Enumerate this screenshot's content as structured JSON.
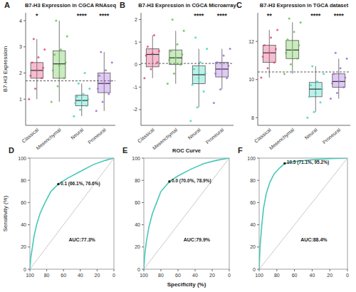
{
  "chart_data": [
    {
      "type": "box",
      "panel": "A",
      "title": "B7-H3 Expression in CGCA RNAseq",
      "y_label": "B7-H3 Expression",
      "categories": [
        "Classical",
        "Mesenchymal",
        "Neural",
        "Proneural"
      ],
      "colors": [
        "#e0457b",
        "#66c24a",
        "#3fd7c0",
        "#a26bd9"
      ],
      "significance": [
        "*",
        null,
        "****",
        "****"
      ],
      "reference_line": 1.7,
      "ylim": [
        0,
        4.3
      ],
      "yticks": [
        1,
        2,
        3,
        4
      ],
      "boxes": [
        {
          "whisker_low": 1.0,
          "q1": 1.8,
          "median": 2.1,
          "q3": 2.4,
          "whisker_high": 3.3,
          "points": [
            1.0,
            1.4,
            1.8,
            1.9,
            2.1,
            2.2,
            2.4,
            2.6,
            2.9,
            3.3
          ]
        },
        {
          "whisker_low": 0.9,
          "q1": 1.8,
          "median": 2.35,
          "q3": 2.85,
          "whisker_high": 4.0,
          "points": [
            0.9,
            1.5,
            1.8,
            2.1,
            2.3,
            2.4,
            2.7,
            2.9,
            3.4,
            4.0
          ]
        },
        {
          "whisker_low": 0.35,
          "q1": 0.75,
          "median": 0.95,
          "q3": 1.15,
          "whisker_high": 1.6,
          "points": [
            0.35,
            0.6,
            0.75,
            0.85,
            0.95,
            1.0,
            1.1,
            1.2,
            1.4,
            1.6,
            2.0
          ]
        },
        {
          "whisker_low": 0.55,
          "q1": 1.25,
          "median": 1.6,
          "q3": 2.0,
          "whisker_high": 2.8,
          "points": [
            0.55,
            0.9,
            1.2,
            1.4,
            1.6,
            1.7,
            1.9,
            2.1,
            2.4,
            2.8
          ]
        }
      ]
    },
    {
      "type": "box",
      "panel": "B",
      "title": "B7-H3 Expression in CGCA Microarray",
      "categories": [
        "Classical",
        "Mesenchymal",
        "Neural",
        "Proneural"
      ],
      "colors": [
        "#e0457b",
        "#66c24a",
        "#3fd7c0",
        "#a26bd9"
      ],
      "significance": [
        null,
        null,
        "****",
        "****"
      ],
      "reference_line": 0.05,
      "ylim": [
        -2.7,
        2.3
      ],
      "yticks": [
        -2,
        -1,
        0,
        1,
        2
      ],
      "boxes": [
        {
          "whisker_low": -0.6,
          "q1": -0.1,
          "median": 0.45,
          "q3": 0.7,
          "whisker_high": 1.3,
          "points": [
            -0.6,
            -0.2,
            0.1,
            0.4,
            0.5,
            0.6,
            0.8,
            1.3
          ]
        },
        {
          "whisker_low": -0.85,
          "q1": 0.0,
          "median": 0.3,
          "q3": 0.65,
          "whisker_high": 1.5,
          "points": [
            -0.85,
            -0.4,
            0.0,
            0.2,
            0.3,
            0.45,
            0.6,
            0.9,
            1.5,
            2.0
          ]
        },
        {
          "whisker_low": -1.9,
          "q1": -0.85,
          "median": -0.45,
          "q3": -0.05,
          "whisker_high": 0.7,
          "points": [
            -2.5,
            -1.9,
            -1.2,
            -0.9,
            -0.6,
            -0.4,
            -0.2,
            0.1,
            0.7,
            1.2
          ]
        },
        {
          "whisker_low": -1.1,
          "q1": -0.55,
          "median": -0.2,
          "q3": 0.1,
          "whisker_high": 0.7,
          "points": [
            -1.7,
            -1.1,
            -0.6,
            -0.4,
            -0.2,
            -0.05,
            0.1,
            0.4,
            0.7
          ]
        }
      ]
    },
    {
      "type": "box",
      "panel": "C",
      "title": "B7-H3 Expression in TGCA dataset",
      "categories": [
        "Classical",
        "Mesenchymal",
        "Neural",
        "Proneural"
      ],
      "colors": [
        "#e0457b",
        "#66c24a",
        "#3fd7c0",
        "#a26bd9"
      ],
      "significance": [
        "**",
        null,
        "****",
        "****"
      ],
      "reference_line": 10.4,
      "ylim": [
        7.6,
        13.5
      ],
      "yticks": [
        8,
        10,
        12
      ],
      "boxes": [
        {
          "whisker_low": 10.1,
          "q1": 10.9,
          "median": 11.4,
          "q3": 11.8,
          "whisker_high": 12.6,
          "points": [
            10.1,
            10.6,
            10.9,
            11.2,
            11.4,
            11.6,
            11.8,
            12.2,
            12.6
          ]
        },
        {
          "whisker_low": 10.3,
          "q1": 11.1,
          "median": 11.55,
          "q3": 12.05,
          "whisker_high": 13.0,
          "points": [
            10.3,
            10.8,
            11.1,
            11.4,
            11.55,
            11.8,
            12.1,
            12.5,
            13.0,
            13.2
          ]
        },
        {
          "whisker_low": 8.3,
          "q1": 9.1,
          "median": 9.5,
          "q3": 9.85,
          "whisker_high": 10.7,
          "points": [
            8.0,
            8.3,
            8.8,
            9.1,
            9.3,
            9.5,
            9.7,
            9.9,
            10.3,
            10.7
          ]
        },
        {
          "whisker_low": 9.0,
          "q1": 9.6,
          "median": 9.9,
          "q3": 10.3,
          "whisker_high": 11.1,
          "points": [
            9.0,
            9.3,
            9.6,
            9.8,
            9.9,
            10.1,
            10.3,
            10.6,
            11.1,
            11.4
          ]
        }
      ]
    },
    {
      "type": "line",
      "panel": "D",
      "y_label": "Sensitivity (%)",
      "color": "#45c8b8",
      "xlim": [
        100,
        0
      ],
      "xticks": [
        100,
        80,
        60,
        40,
        20,
        0
      ],
      "ylim": [
        0,
        100
      ],
      "yticks": [
        0,
        20,
        40,
        60,
        80,
        100
      ],
      "x": [
        100,
        99,
        97,
        95,
        92,
        88,
        82,
        75,
        66.1,
        55,
        40,
        25,
        10,
        0
      ],
      "values": [
        0,
        10,
        20,
        30,
        40,
        50,
        60,
        70,
        76.6,
        82,
        88,
        94,
        98,
        100
      ],
      "threshold": {
        "x": 66.1,
        "y": 76.6,
        "label": "0.1 (66.1%, 76.6%)"
      },
      "auc_label": "AUC:77.3%"
    },
    {
      "type": "line",
      "panel": "E",
      "title": "ROC Curve",
      "x_label": "Specificity (%)",
      "color": "#45c8b8",
      "xlim": [
        100,
        0
      ],
      "xticks": [
        100,
        80,
        60,
        40,
        20,
        0
      ],
      "ylim": [
        0,
        100
      ],
      "yticks": [
        0,
        20,
        40,
        60,
        80,
        100
      ],
      "x": [
        100,
        99,
        97,
        94,
        90,
        85,
        80,
        70,
        60,
        45,
        30,
        15,
        0
      ],
      "values": [
        0,
        12,
        25,
        38,
        50,
        60,
        70,
        78.9,
        84,
        90,
        95,
        98,
        100
      ],
      "threshold": {
        "x": 70.0,
        "y": 78.9,
        "label": "0.0 (70.0%, 78.9%)"
      },
      "auc_label": "AUC:79.9%"
    },
    {
      "type": "line",
      "panel": "F",
      "color": "#45c8b8",
      "xlim": [
        100,
        0
      ],
      "xticks": [
        100,
        80,
        60,
        40,
        20,
        0
      ],
      "ylim": [
        0,
        100
      ],
      "yticks": [
        0,
        20,
        40,
        60,
        80,
        100
      ],
      "x": [
        100,
        99,
        97,
        95,
        92,
        88,
        83,
        77,
        71.1,
        60,
        40,
        20,
        0
      ],
      "values": [
        0,
        20,
        40,
        55,
        68,
        78,
        86,
        91,
        95.2,
        97,
        98.5,
        99.5,
        100
      ],
      "threshold": {
        "x": 71.1,
        "y": 95.2,
        "label": "10.5 (71.1%, 95.2%)"
      },
      "auc_label": "AUC:88.4%"
    }
  ]
}
